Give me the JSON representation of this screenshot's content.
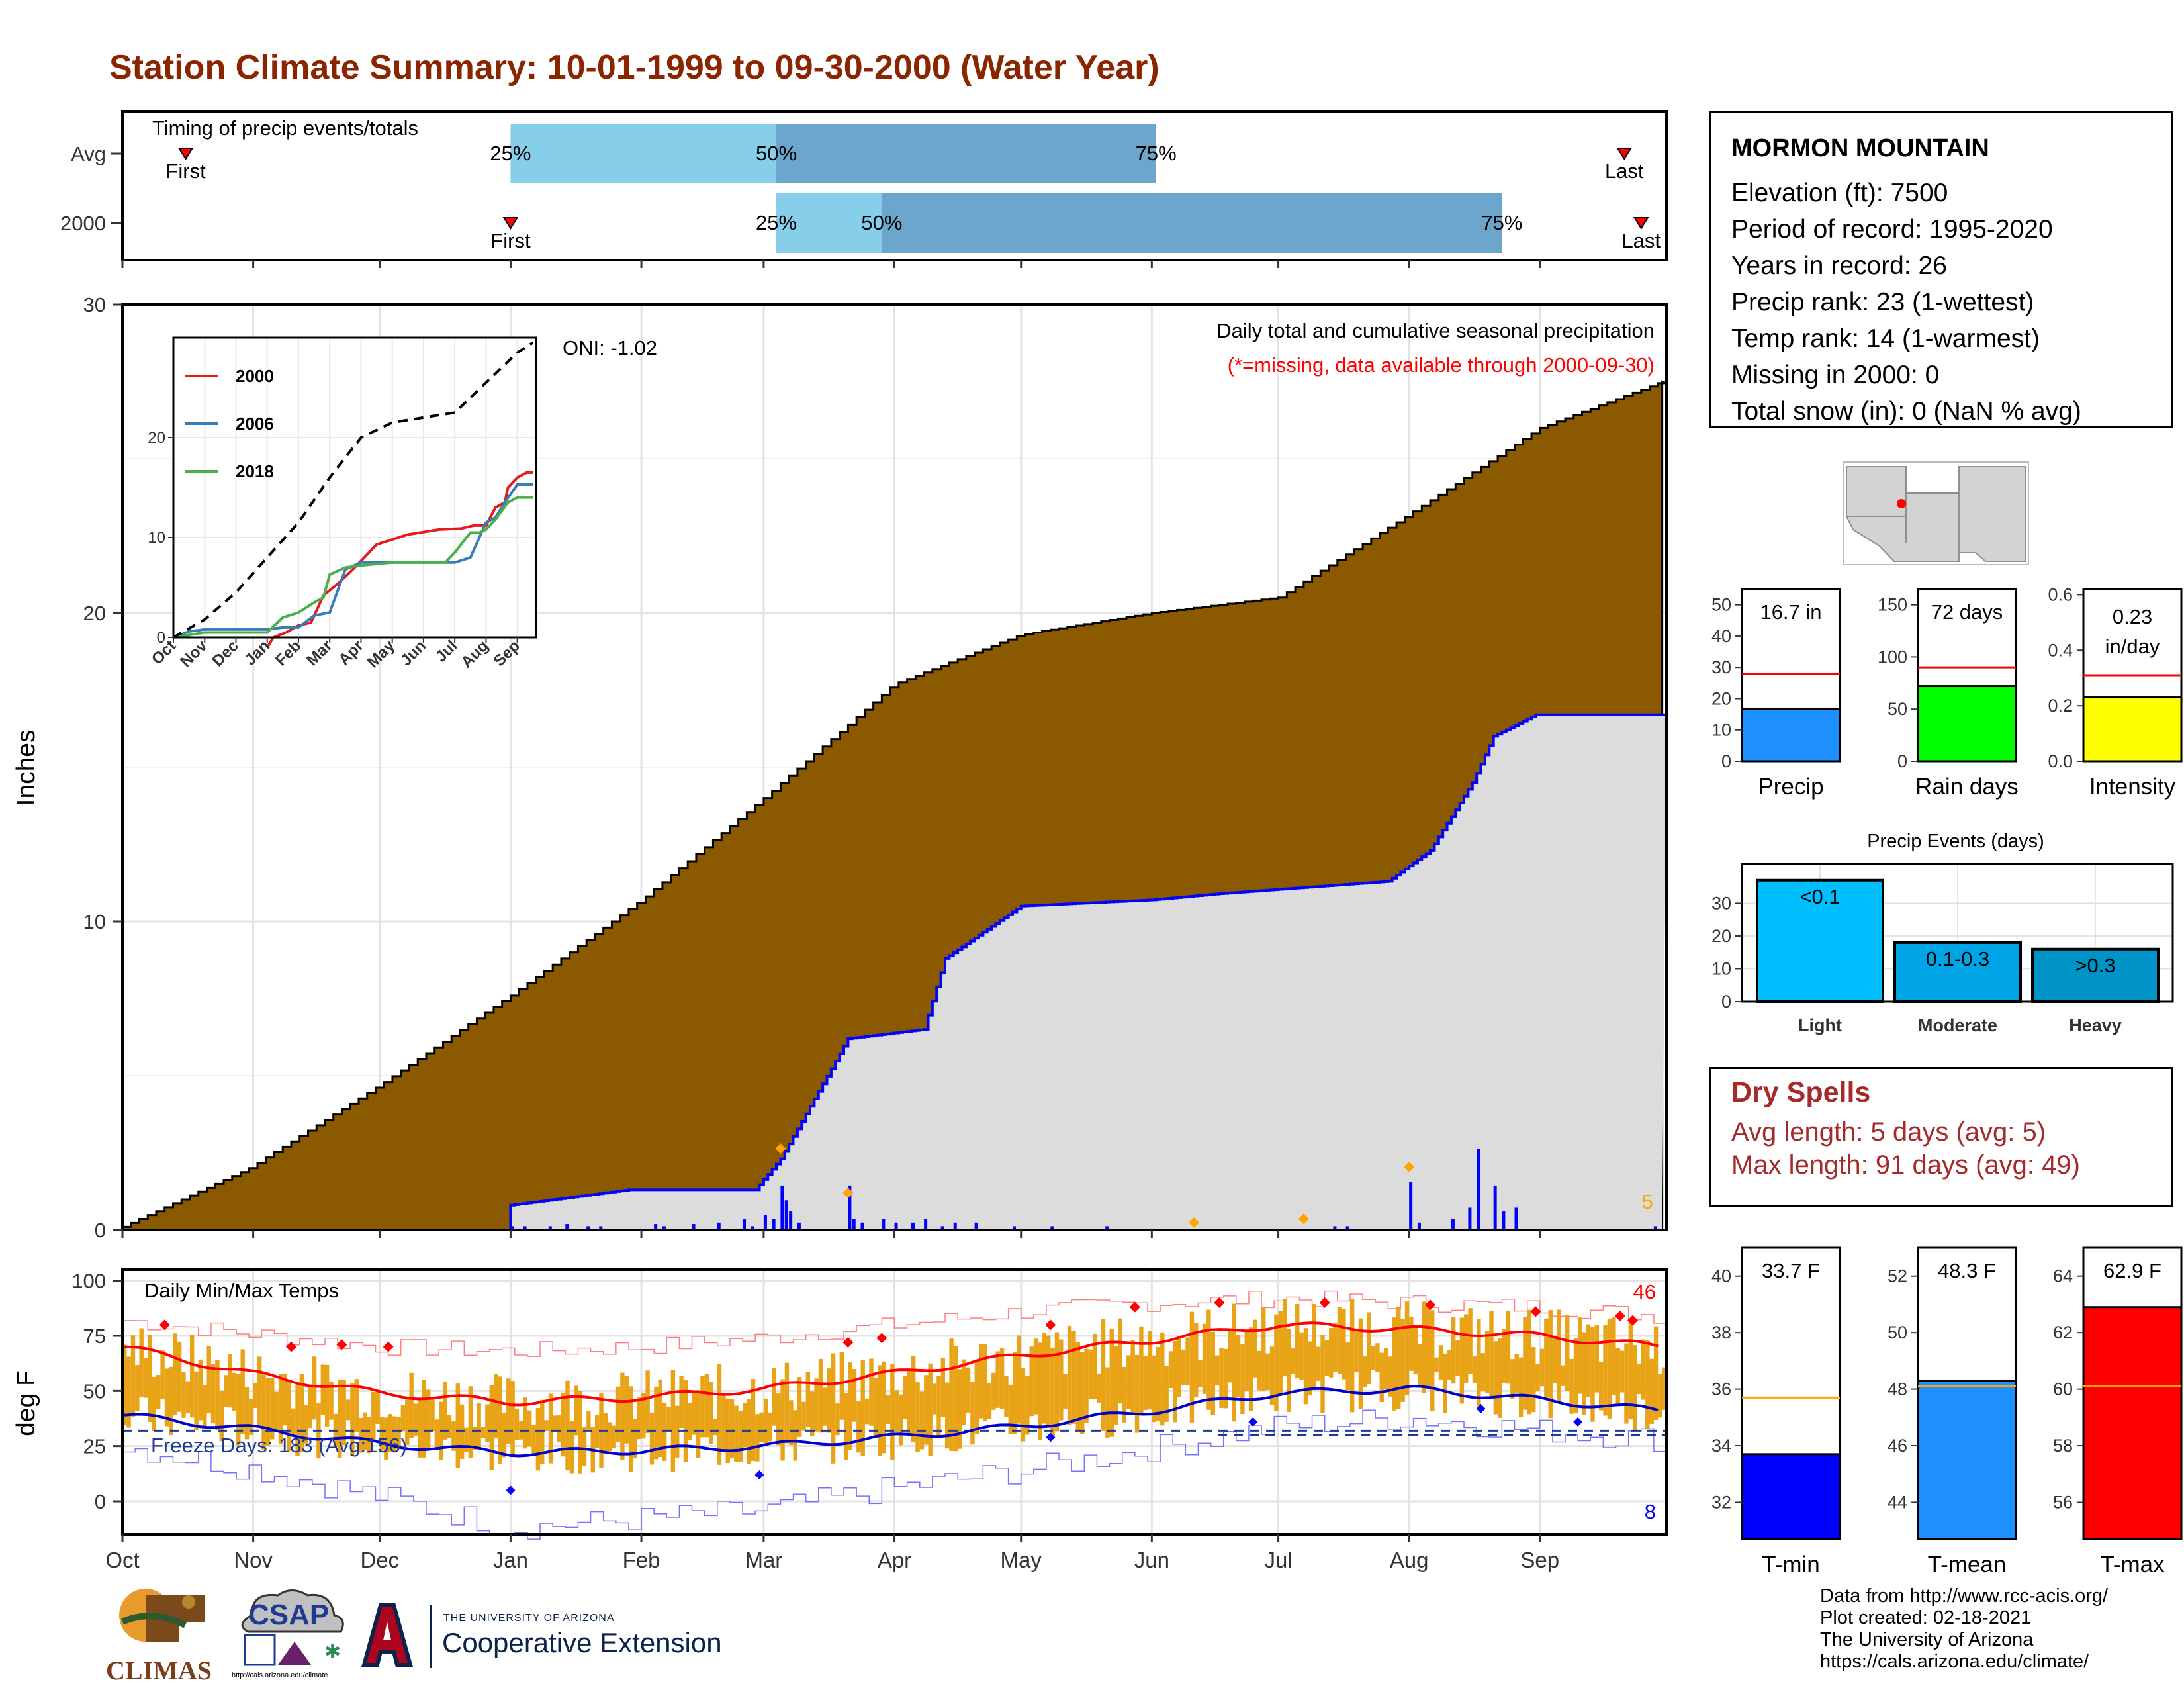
{
  "title": "Station Climate Summary: 10-01-1999 to 09-30-2000 (Water Year)",
  "station": {
    "name": "MORMON MOUNTAIN",
    "lines": [
      "Elevation (ft): 7500",
      "Period of record: 1995-2020",
      "Years in record: 26",
      "Precip rank: 23 (1-wettest)",
      "Temp rank: 14 (1-warmest)",
      "Missing in 2000: 0",
      "Total snow (in): 0 (NaN % avg)"
    ]
  },
  "dry_spells": {
    "title": "Dry Spells",
    "avg": "Avg length: 5 days (avg: 5)",
    "max": "Max length: 91 days (avg: 49)"
  },
  "footer": [
    "Data from http://www.rcc-acis.org/",
    "Plot created: 02-18-2021",
    "The University of Arizona",
    "https://cals.arizona.edu/climate/"
  ],
  "logos": {
    "climas": "CLIMAS",
    "csap": "CSAP",
    "csap_url": "http://cals.arizona.edu/climate",
    "ua_small": "THE UNIVERSITY OF ARIZONA",
    "ua_big": "Cooperative Extension"
  },
  "colors": {
    "title": "#8B2500",
    "cumulative_avg": "#8B5A00",
    "cumulative_2000": "#DCDCDC",
    "daily_precip": "#0000FF",
    "temp_bars": "#E8A317",
    "tmax_line": "#FF0000",
    "tmin_line": "#0000CD",
    "dry_spells": "#A52A2A"
  },
  "chart_data": [
    {
      "id": "timing",
      "type": "bar",
      "title": "Timing of precip events/totals",
      "rows": [
        {
          "label": "Avg",
          "first": "Oct 16",
          "p25": "Jan 1",
          "p50": "Mar 4",
          "p75": "Jun 2",
          "last": "Sep 21",
          "first_label": "First",
          "last_label": "Last"
        },
        {
          "label": "2000",
          "first": "Jan 1",
          "p25": "Mar 4",
          "p50": "Mar 29",
          "p75": "Aug 23",
          "last": "Sep 25",
          "first_label": "First",
          "last_label": "Last"
        }
      ],
      "pct_labels": [
        "25%",
        "50%",
        "75%"
      ]
    },
    {
      "id": "precip",
      "type": "area",
      "title": "Daily total and cumulative seasonal precipitation",
      "subtitle": "(*=missing, data available through 2000-09-30)",
      "annotation": "ONI: -1.02",
      "ylabel": "Inches",
      "ylim": [
        0,
        30
      ],
      "yticks": [
        0,
        10,
        20,
        30
      ],
      "x_months": [
        "Oct",
        "Nov",
        "Dec",
        "Jan",
        "Feb",
        "Mar",
        "Apr",
        "May",
        "Jun",
        "Jul",
        "Aug",
        "Sep"
      ],
      "max_daily_label": "5",
      "series": [
        {
          "name": "Average cumulative",
          "x_day": [
            0,
            30,
            61,
            92,
            123,
            152,
            183,
            213,
            244,
            274,
            305,
            336,
            365
          ],
          "values": [
            0.1,
            2.0,
            4.7,
            7.6,
            10.7,
            14.0,
            17.7,
            19.3,
            20.0,
            20.5,
            23.2,
            26.0,
            27.5
          ]
        },
        {
          "name": "2000 cumulative",
          "x_day": [
            0,
            91,
            92,
            120,
            150,
            156,
            172,
            190,
            195,
            213,
            244,
            260,
            300,
            310,
            320,
            325,
            335,
            365
          ],
          "values": [
            0,
            0,
            0.8,
            1.3,
            1.3,
            2.3,
            6.2,
            6.5,
            8.8,
            10.5,
            10.7,
            10.9,
            11.3,
            12.3,
            14.5,
            16.0,
            16.7,
            16.7
          ]
        }
      ],
      "daily_precip_days": [
        92,
        95,
        101,
        105,
        110,
        113,
        126,
        128,
        135,
        141,
        147,
        149,
        152,
        154,
        156,
        157,
        158,
        160,
        172,
        173,
        175,
        180,
        183,
        187,
        190,
        194,
        197,
        202,
        211,
        220,
        233,
        287,
        290,
        305,
        307,
        315,
        319,
        321,
        325,
        327,
        330,
        363
      ],
      "daily_precip_values": [
        0.05,
        0.05,
        0.05,
        0.08,
        0.05,
        0.05,
        0.08,
        0.05,
        0.08,
        0.1,
        0.15,
        0.05,
        0.2,
        0.15,
        0.6,
        0.4,
        0.25,
        0.1,
        0.6,
        0.15,
        0.1,
        0.15,
        0.1,
        0.1,
        0.15,
        0.05,
        0.1,
        0.1,
        0.05,
        0.05,
        0.05,
        0.05,
        0.05,
        0.65,
        0.1,
        0.15,
        0.3,
        1.1,
        0.6,
        0.25,
        0.3,
        0.05
      ]
    },
    {
      "id": "inset",
      "type": "line",
      "x_months": [
        "Oct",
        "Nov",
        "Dec",
        "Jan",
        "Feb",
        "Mar",
        "Apr",
        "May",
        "Jun",
        "Jul",
        "Aug",
        "Sep"
      ],
      "ylim": [
        0,
        30
      ],
      "yticks": [
        0,
        10,
        20
      ],
      "series": [
        {
          "name": "2000",
          "color": "#E41A1C",
          "x_month": [
            3,
            3.2,
            3.6,
            4.0,
            4.4,
            4.8,
            5.3,
            5.8,
            6.5,
            7.5,
            8.5,
            9.2,
            9.6,
            10.0,
            10.3,
            10.6,
            10.7,
            11.0,
            11.3,
            11.5
          ],
          "values": [
            -1,
            0,
            0.5,
            1.2,
            1.5,
            4.2,
            5.5,
            7.0,
            9.3,
            10.3,
            10.8,
            10.9,
            11.2,
            11.2,
            13.0,
            13.5,
            15.0,
            16.0,
            16.5,
            16.5
          ]
        },
        {
          "name": "2006",
          "color": "#377EB8",
          "x_month": [
            0,
            0.5,
            1,
            2,
            3,
            3.5,
            4,
            4.5,
            5,
            5.5,
            6,
            7,
            8,
            8.5,
            9,
            9.5,
            10,
            10.3,
            10.6,
            11,
            11.5
          ],
          "values": [
            0,
            0.6,
            0.8,
            0.8,
            0.8,
            1.0,
            1.0,
            2.2,
            2.5,
            6.8,
            7.5,
            7.5,
            7.5,
            7.5,
            7.5,
            8.0,
            11.5,
            12.0,
            13.5,
            15.3,
            15.3
          ]
        },
        {
          "name": "2018",
          "color": "#4DAF4A",
          "x_month": [
            0,
            1,
            3,
            3.5,
            4,
            4.5,
            4.8,
            5,
            5.5,
            6,
            7,
            8,
            8.7,
            9,
            9.5,
            9.8,
            10,
            10.3,
            10.7,
            11,
            11.5
          ],
          "values": [
            0,
            0.5,
            0.5,
            2.0,
            2.5,
            3.5,
            4.0,
            6.3,
            7.0,
            7.2,
            7.5,
            7.5,
            7.5,
            8.5,
            10.5,
            10.5,
            10.8,
            11.8,
            13.5,
            14.0,
            14.0
          ]
        },
        {
          "name": "Average",
          "color": "#000000",
          "dashed": true,
          "x_month": [
            0,
            1,
            2,
            3,
            4,
            5,
            6,
            7,
            8,
            9,
            10,
            11,
            11.5
          ],
          "values": [
            0,
            1.8,
            4.5,
            8.0,
            11.5,
            16.0,
            20.0,
            21.5,
            22.0,
            22.5,
            25.5,
            28.5,
            29.5
          ]
        }
      ]
    },
    {
      "id": "temps",
      "type": "bar",
      "title": "Daily Min/Max Temps",
      "ylabel": "deg F",
      "ylim": [
        -15,
        105
      ],
      "yticks": [
        0,
        25,
        50,
        75,
        100
      ],
      "x_months": [
        "Oct",
        "Nov",
        "Dec",
        "Jan",
        "Feb",
        "Mar",
        "Apr",
        "May",
        "Jun",
        "Jul",
        "Aug",
        "Sep"
      ],
      "freeze_label": "Freeze Days: 183 (Avg:156)",
      "freeze_line": 32,
      "freeze_line_avg": 30,
      "max_label": "46",
      "min_label": "8",
      "avg_tmax_x_day": [
        0,
        30,
        61,
        92,
        123,
        152,
        183,
        213,
        244,
        274,
        305,
        336,
        365
      ],
      "avg_tmax": [
        70,
        58,
        49,
        45,
        47,
        51,
        58,
        66,
        73,
        80,
        78,
        75,
        70
      ],
      "avg_tmin_x_day": [
        0,
        30,
        61,
        92,
        123,
        152,
        183,
        213,
        244,
        274,
        305,
        336,
        365
      ],
      "avg_tmin": [
        39,
        33,
        26,
        22,
        23,
        25,
        29,
        34,
        41,
        49,
        51,
        46,
        41
      ],
      "record_max_x_day": [
        0,
        30,
        61,
        92,
        123,
        152,
        183,
        213,
        244,
        274,
        305,
        336,
        365
      ],
      "record_max": [
        82,
        76,
        70,
        68,
        70,
        74,
        80,
        86,
        90,
        92,
        90,
        88,
        84
      ],
      "record_min_x_day": [
        0,
        30,
        61,
        92,
        123,
        152,
        183,
        213,
        244,
        274,
        305,
        336,
        365
      ],
      "record_min": [
        25,
        15,
        2,
        -12,
        -8,
        -4,
        6,
        14,
        24,
        34,
        38,
        32,
        28
      ]
    },
    {
      "id": "summary_precip",
      "type": "bar",
      "panels": [
        {
          "label": "Precip",
          "value_label": "16.7 in",
          "value": 16.7,
          "avg": 28,
          "ylim": [
            0,
            55
          ],
          "yticks": [
            0,
            10,
            20,
            30,
            40,
            50
          ],
          "color": "#1E90FF"
        },
        {
          "label": "Rain days",
          "value_label": "72 days",
          "value": 72,
          "avg": 90,
          "ylim": [
            0,
            165
          ],
          "yticks": [
            0,
            50,
            100,
            150
          ],
          "color": "#00FF00"
        },
        {
          "label": "Intensity",
          "value_label_1": "0.23",
          "value_label_2": "in/day",
          "value": 0.23,
          "avg": 0.31,
          "ylim": [
            0,
            0.62
          ],
          "yticks": [
            0.0,
            0.2,
            0.4,
            0.6
          ],
          "color": "#FFFF00"
        }
      ]
    },
    {
      "id": "precip_events",
      "type": "bar",
      "title": "Precip Events (days)",
      "categories": [
        "Light",
        "Moderate",
        "Heavy"
      ],
      "bar_labels": [
        "<0.1",
        "0.1-0.3",
        ">0.3"
      ],
      "values": [
        37,
        18,
        16
      ],
      "ylim": [
        0,
        42
      ],
      "yticks": [
        0,
        10,
        20,
        30
      ],
      "colors": [
        "#00BFFF",
        "#00A5E8",
        "#0093C8"
      ]
    },
    {
      "id": "summary_temps",
      "type": "bar",
      "panels": [
        {
          "label": "T-min",
          "value_label": "33.7 F",
          "value": 33.7,
          "avg": 35.7,
          "ylim": [
            30.7,
            41.0
          ],
          "yticks": [
            32,
            34,
            36,
            38,
            40
          ],
          "color": "#0000FF"
        },
        {
          "label": "T-mean",
          "value_label": "48.3 F",
          "value": 48.3,
          "avg": 48.1,
          "ylim": [
            42.7,
            53.0
          ],
          "yticks": [
            44,
            46,
            48,
            50,
            52
          ],
          "color": "#1E90FF"
        },
        {
          "label": "T-max",
          "value_label": "62.9 F",
          "value": 62.9,
          "avg": 60.1,
          "ylim": [
            54.7,
            65.0
          ],
          "yticks": [
            56,
            58,
            60,
            62,
            64
          ],
          "color": "#FF0000"
        }
      ]
    }
  ]
}
